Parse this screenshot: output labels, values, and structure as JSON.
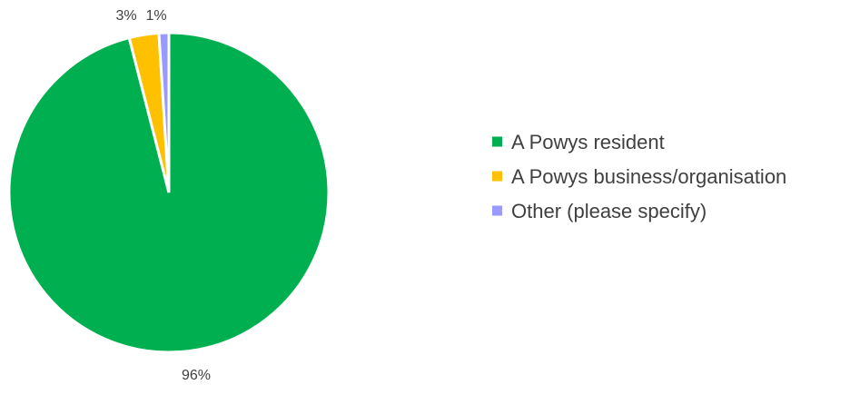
{
  "chart_data": {
    "type": "pie",
    "categories": [
      "A Powys resident",
      "A Powys business/organisation",
      "Other (please specify)"
    ],
    "values": [
      96,
      3,
      1
    ],
    "value_labels": [
      "96%",
      "3%",
      "1%"
    ],
    "colors": [
      "#00b050",
      "#ffc000",
      "#9999ff"
    ],
    "start_angle_deg": 0,
    "direction": "clockwise",
    "legend_position": "right"
  }
}
